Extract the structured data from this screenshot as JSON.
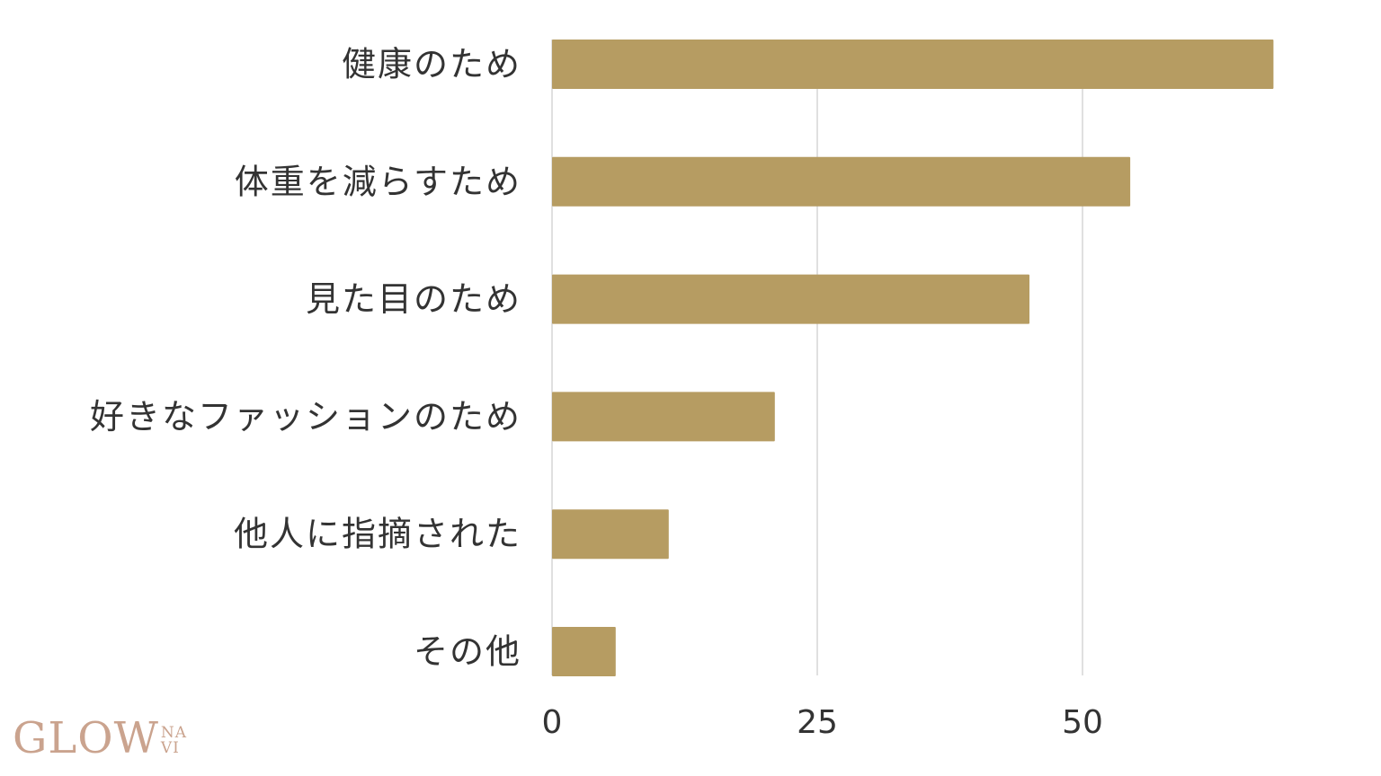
{
  "chart_data": {
    "type": "bar",
    "orientation": "horizontal",
    "categories": [
      "健康のため",
      "体重を減らすため",
      "見た目のため",
      "好きなファッションのため",
      "他人に指摘された",
      "その他"
    ],
    "values": [
      68,
      54.5,
      45,
      21,
      11,
      6
    ],
    "xlim": [
      0,
      75
    ],
    "xticks": [
      0,
      25,
      50
    ],
    "grid": true,
    "bar_color": "#b69c62",
    "grid_color": "#d6d6d6",
    "label_color": "#333333"
  },
  "logo": {
    "main": "GLOW",
    "sub_top": "NA",
    "sub_bottom": "VI",
    "color": "#caa38e"
  }
}
